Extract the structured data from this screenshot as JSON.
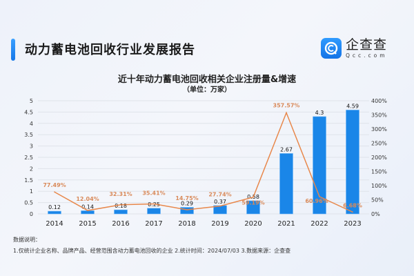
{
  "header": {
    "title": "动力蓄电池回收行业发展报告",
    "logo_cn": "企查查",
    "logo_en": "Qcc.com"
  },
  "chart_data": {
    "type": "bar+line",
    "title": "近十年动力蓄电池回收相关企业注册量&增速",
    "subtitle": "（单位：万家）",
    "categories": [
      "2014",
      "2015",
      "2016",
      "2017",
      "2018",
      "2019",
      "2020",
      "2021",
      "2022",
      "2023"
    ],
    "series": [
      {
        "type": "bar",
        "axis": "left",
        "values": [
          0.12,
          0.14,
          0.18,
          0.25,
          0.29,
          0.37,
          0.58,
          2.67,
          4.3,
          4.59
        ],
        "labels": [
          "0.12",
          "0.14",
          "0.18",
          "0.25",
          "0.29",
          "0.37",
          "0.58",
          "2.67",
          "4.3",
          "4.59"
        ],
        "color": "#1a86e8"
      },
      {
        "type": "line",
        "axis": "right",
        "values": [
          77.49,
          12.04,
          32.31,
          35.41,
          14.75,
          27.74,
          59.19,
          357.57,
          60.96,
          6.68
        ],
        "labels": [
          "77.49%",
          "12.04%",
          "32.31%",
          "35.41%",
          "14.75%",
          "27.74%",
          "59.19%",
          "357.57%",
          "60.96%",
          "6.68%"
        ],
        "color": "#e8874a"
      }
    ],
    "left_axis": {
      "range": [
        0,
        5
      ],
      "ticks": [
        "0",
        "0.5",
        "1",
        "1.5",
        "2",
        "2.5",
        "3",
        "3.5",
        "4",
        "4.5",
        "5"
      ]
    },
    "right_axis": {
      "range": [
        0,
        400
      ],
      "ticks": [
        "0%",
        "50%",
        "100%",
        "150%",
        "200%",
        "250%",
        "300%",
        "350%",
        "400%"
      ]
    },
    "grid": true
  },
  "notes": {
    "heading": "数据说明：",
    "text": "1.仅统计企业名称、品牌产品、经营范围含动力蓄电池回收的企业   2.统计时间：2024/07/03    3.数据来源：企查查"
  }
}
